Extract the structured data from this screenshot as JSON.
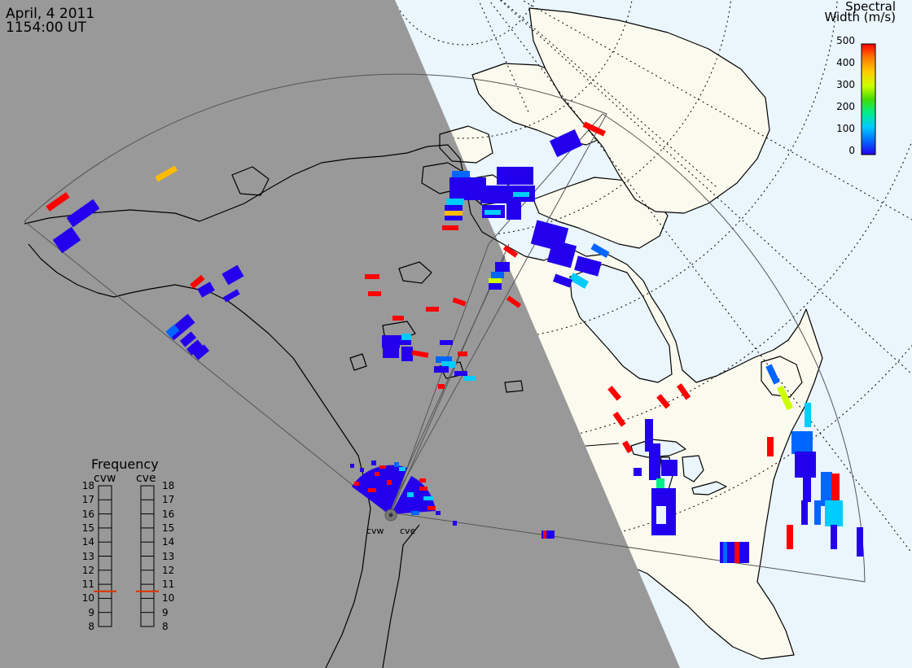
{
  "title": {
    "date": "April, 4 2011",
    "time": "1154:00 UT"
  },
  "colorbar": {
    "title_line1": "Spectral",
    "title_line2": "Width (m/s)",
    "ticks": [
      "500",
      "400",
      "300",
      "200",
      "100",
      "0"
    ],
    "range": [
      0,
      500
    ],
    "colors": [
      "#2200ee",
      "#0066ff",
      "#00ccff",
      "#00ee88",
      "#44dd00",
      "#ccff00",
      "#ffcc00",
      "#ff7700",
      "#ff0000"
    ]
  },
  "frequency": {
    "title": "Frequency",
    "radars": [
      {
        "label": "cvw",
        "value": 10.5
      },
      {
        "label": "cve",
        "value": 10.5
      }
    ],
    "ticks": [
      "18",
      "17",
      "16",
      "15",
      "14",
      "13",
      "12",
      "11",
      "10",
      "9",
      "8"
    ],
    "range": [
      8,
      18
    ],
    "marker_color": "#e03000"
  },
  "radars": [
    {
      "code": "cvw"
    },
    {
      "code": "cve"
    }
  ],
  "colors": {
    "night": "#999999",
    "day_land": "#fbfaee",
    "day_ocean": "#eaf5fc"
  }
}
